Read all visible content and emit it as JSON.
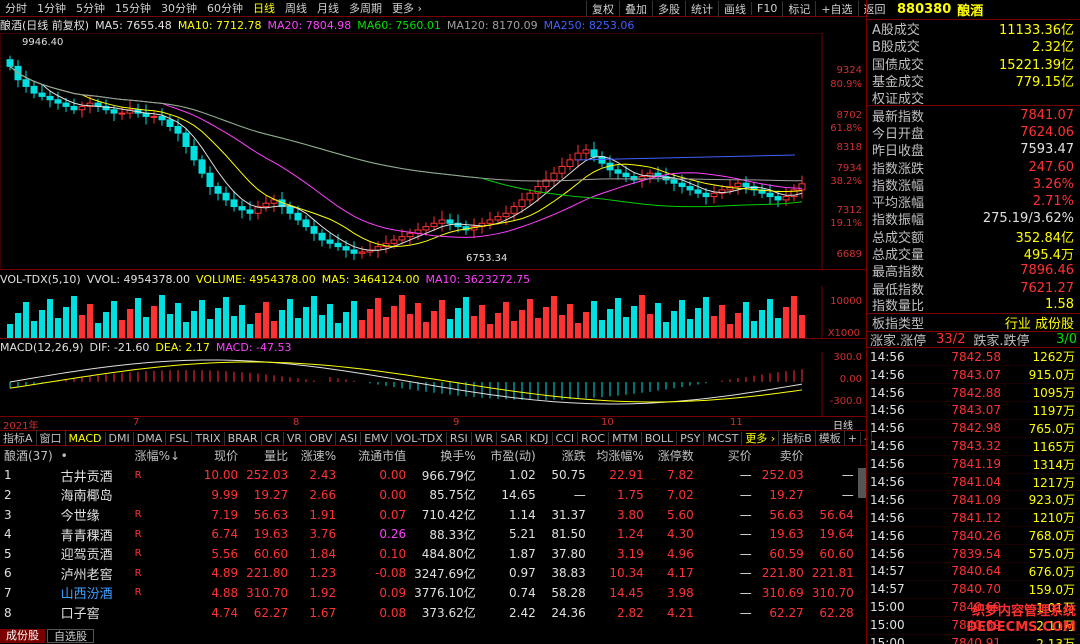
{
  "toolbar": {
    "timeframes": [
      "分时",
      "1分钟",
      "5分钟",
      "15分钟",
      "30分钟",
      "60分钟",
      "日线",
      "周线",
      "月线",
      "多周期",
      "更多 ›"
    ],
    "active_index": 6,
    "right": [
      "复权",
      "叠加",
      "多股",
      "统计",
      "画线",
      "F10",
      "标记",
      "+自选",
      "返回"
    ]
  },
  "ma_line": {
    "title": "酿酒(日线 前复权)",
    "ma5": "MA5: 7655.48",
    "ma10": "MA10: 7712.78",
    "ma20": "MA20: 7804.98",
    "ma60": "MA60: 7560.01",
    "ma120": "MA120: 8170.09",
    "ma250": "MA250: 8253.06"
  },
  "price_axis": [
    {
      "v": "9324",
      "c": "red"
    },
    {
      "v": "80.9%",
      "c": "red"
    },
    {
      "v": "8702",
      "c": "red"
    },
    {
      "v": "61.8%",
      "c": "red"
    },
    {
      "v": "8318",
      "c": "red"
    },
    {
      "v": "7934",
      "c": "red"
    },
    {
      "v": "38.2%",
      "c": "red"
    },
    {
      "v": "7312",
      "c": "red"
    },
    {
      "v": "19.1%",
      "c": "red"
    },
    {
      "v": "6689",
      "c": "red"
    }
  ],
  "price_marks": {
    "high": "9946.40",
    "low": "6753.34"
  },
  "vol_line": {
    "title": "VOL-TDX(5,10)",
    "vvol": "VVOL: 4954378.00",
    "volume": "VOLUME: 4954378.00",
    "ma5": "MA5: 3464124.00",
    "ma10": "MA10: 3623272.75"
  },
  "vol_axis": {
    "top": "10000",
    "unit": "X1000"
  },
  "macd_line": {
    "title": "MACD(12,26,9)",
    "dif": "DIF: -21.60",
    "dea": "DEA: 2.17",
    "macd": "MACD: -47.53"
  },
  "macd_axis": [
    "300.0",
    "0.00",
    "-300.0"
  ],
  "date_axis": {
    "year": "2021年",
    "months": [
      "7",
      "8",
      "9",
      "10",
      "11"
    ]
  },
  "date_axis_label": "日线",
  "tabs": [
    "指标A",
    "窗口",
    "MACD",
    "DMI",
    "DMA",
    "FSL",
    "TRIX",
    "BRAR",
    "CR",
    "VR",
    "OBV",
    "ASI",
    "EMV",
    "VOL-TDX",
    "RSI",
    "WR",
    "SAR",
    "KDJ",
    "CCI",
    "ROC",
    "MTM",
    "BOLL",
    "PSY",
    "MCST",
    "更多 ›",
    "指标B",
    "模板",
    "+",
    "-"
  ],
  "table": {
    "headers": [
      "酿酒(37)",
      "•",
      "涨幅%↓",
      "现价",
      "量比",
      "涨速%",
      "流通市值",
      "换手%",
      "市盈(动)",
      "涨跌",
      "均涨幅%",
      "涨停数",
      "买价",
      "卖价"
    ],
    "rows": [
      [
        "1",
        "古井贡酒",
        "R",
        "10.00",
        "252.03",
        "2.43",
        "0.00",
        "966.79亿",
        "1.02",
        "50.75",
        "22.91",
        "7.82",
        "—",
        "252.03",
        "—"
      ],
      [
        "2",
        "海南椰岛",
        "",
        "9.99",
        "19.27",
        "2.66",
        "0.00",
        "85.75亿",
        "14.65",
        "—",
        "1.75",
        "7.02",
        "—",
        "19.27",
        "—"
      ],
      [
        "3",
        "今世缘",
        "R",
        "7.19",
        "56.63",
        "1.91",
        "0.07",
        "710.42亿",
        "1.14",
        "31.37",
        "3.80",
        "5.60",
        "—",
        "56.63",
        "56.64"
      ],
      [
        "4",
        "青青稞酒",
        "R",
        "6.74",
        "19.63",
        "3.76",
        "0.26",
        "88.33亿",
        "5.21",
        "81.50",
        "1.24",
        "4.30",
        "—",
        "19.63",
        "19.64"
      ],
      [
        "5",
        "迎驾贡酒",
        "R",
        "5.56",
        "60.60",
        "1.84",
        "0.10",
        "484.80亿",
        "1.87",
        "37.80",
        "3.19",
        "4.96",
        "—",
        "60.59",
        "60.60"
      ],
      [
        "6",
        "泸州老窖",
        "R",
        "4.89",
        "221.80",
        "1.23",
        "-0.08",
        "3247.69亿",
        "0.97",
        "38.83",
        "10.34",
        "4.17",
        "—",
        "221.80",
        "221.81"
      ],
      [
        "7",
        "山西汾酒",
        "R",
        "4.88",
        "310.70",
        "1.92",
        "0.09",
        "3776.10亿",
        "0.74",
        "58.28",
        "14.45",
        "3.98",
        "—",
        "310.69",
        "310.70"
      ],
      [
        "8",
        "口子窖",
        "",
        "4.74",
        "62.27",
        "1.67",
        "0.08",
        "373.62亿",
        "2.42",
        "24.36",
        "2.82",
        "4.21",
        "—",
        "62.27",
        "62.28"
      ]
    ]
  },
  "bottom_tabs": [
    "成份股",
    "自选股"
  ],
  "right_panel": {
    "code": "880380",
    "name": "酿酒",
    "stats": [
      [
        "A股成交",
        "11133.36亿",
        "yel"
      ],
      [
        "B股成交",
        "2.32亿",
        "yel"
      ],
      [
        "国债成交",
        "15221.39亿",
        "yel"
      ],
      [
        "基金成交",
        "779.15亿",
        "yel"
      ],
      [
        "权证成交",
        "",
        "yel"
      ],
      [
        "最新指数",
        "7841.07",
        "red"
      ],
      [
        "今日开盘",
        "7624.06",
        "red"
      ],
      [
        "昨日收盘",
        "7593.47",
        "wht"
      ],
      [
        "指数涨跌",
        "247.60",
        "red"
      ],
      [
        "指数涨幅",
        "3.26%",
        "red"
      ],
      [
        "平均涨幅",
        "2.71%",
        "red"
      ],
      [
        "指数振幅",
        "275.19/3.62%",
        "wht"
      ],
      [
        "总成交额",
        "352.84亿",
        "yel"
      ],
      [
        "总成交量",
        "495.4万",
        "yel"
      ],
      [
        "最高指数",
        "7896.46",
        "red"
      ],
      [
        "最低指数",
        "7621.27",
        "red"
      ],
      [
        "指数量比",
        "1.58",
        "yel"
      ],
      [
        "板指类型",
        "行业 成份股",
        "yel"
      ]
    ],
    "updown": {
      "up_label": "涨家.涨停",
      "up_val": "33/2",
      "down_label": "跌家.跌停",
      "down_val": "3/0"
    },
    "ticks": [
      [
        "14:56",
        "7842.58",
        "1262万"
      ],
      [
        "14:56",
        "7843.07",
        "915.0万"
      ],
      [
        "14:56",
        "7842.88",
        "1095万"
      ],
      [
        "14:56",
        "7843.07",
        "1197万"
      ],
      [
        "14:56",
        "7842.98",
        "765.0万"
      ],
      [
        "14:56",
        "7843.32",
        "1165万"
      ],
      [
        "14:56",
        "7841.19",
        "1314万"
      ],
      [
        "14:56",
        "7841.04",
        "1217万"
      ],
      [
        "14:56",
        "7841.09",
        "923.0万"
      ],
      [
        "14:56",
        "7841.12",
        "1210万"
      ],
      [
        "14:56",
        "7840.26",
        "768.0万"
      ],
      [
        "14:56",
        "7839.54",
        "575.0万"
      ],
      [
        "14:57",
        "7840.64",
        "676.0万"
      ],
      [
        "14:57",
        "7840.70",
        "159.0万"
      ],
      [
        "15:00",
        "7840.69",
        "1.01万"
      ],
      [
        "15:00",
        "7840.69",
        "2.11万"
      ],
      [
        "15:00",
        "7840.91",
        "2.13万"
      ]
    ]
  },
  "watermark": "织梦内容管理系统 DEDECMS.COM"
}
